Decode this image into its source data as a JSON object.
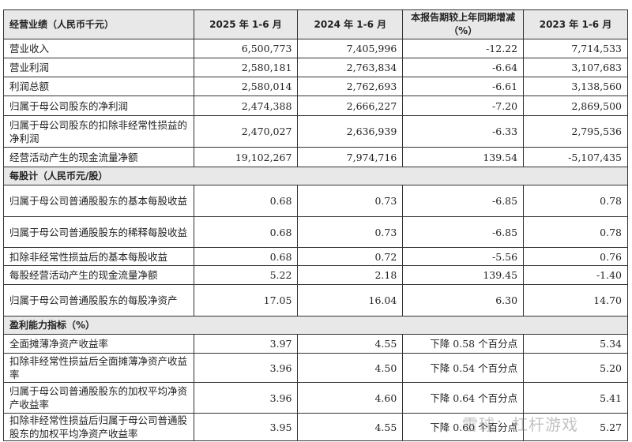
{
  "header": [
    "经营业绩（人民币千元）",
    "2025 年 1-6 月",
    "2024 年 1-6 月",
    "本报告期较上年同期增减（%）",
    "2023 年 1-6 月"
  ],
  "sections": [
    {
      "title": "",
      "rows": [
        [
          "营业收入",
          "6,500,773",
          "7,405,996",
          "-12.22",
          "7,714,533"
        ],
        [
          "营业利润",
          "2,580,181",
          "2,763,834",
          "-6.64",
          "3,107,683"
        ],
        [
          "利润总额",
          "2,580,014",
          "2,762,693",
          "-6.61",
          "3,138,560"
        ],
        [
          "归属于母公司股东的净利润",
          "2,474,388",
          "2,666,227",
          "-7.20",
          "2,869,500"
        ],
        [
          "归属于母公司股东的扣除非经常性损益的净利润",
          "2,470,027",
          "2,636,939",
          "-6.33",
          "2,795,536"
        ],
        [
          "经营活动产生的现金流量净额",
          "19,102,267",
          "7,974,716",
          "139.54",
          "-5,107,435"
        ]
      ]
    },
    {
      "title": "每股计（人民币元/股）",
      "rows": [
        [
          "归属于母公司普通股股东的基本每股收益",
          "0.68",
          "0.73",
          "-6.85",
          "0.78"
        ],
        [
          "归属于母公司普通股股东的稀释每股收益",
          "0.68",
          "0.73",
          "-6.85",
          "0.78"
        ],
        [
          "扣除非经常性损益后的基本每股收益",
          "0.68",
          "0.72",
          "-5.56",
          "0.76"
        ],
        [
          "每股经营活动产生的现金流量净额",
          "5.22",
          "2.18",
          "139.45",
          "-1.40"
        ],
        [
          "归属于母公司普通股股东的每股净资产",
          "17.05",
          "16.04",
          "6.30",
          "14.70"
        ]
      ]
    },
    {
      "title": "盈利能力指标（%）",
      "rows": [
        [
          "全面摊薄净资产收益率",
          "3.97",
          "4.55",
          "下降 0.58 个百分点",
          "5.34"
        ],
        [
          "扣除非经常性损益后全面摊薄净资产收益率",
          "3.96",
          "4.50",
          "下降 0.54 个百分点",
          "5.20"
        ],
        [
          "归属于母公司普通股股东的加权平均净资产收益率",
          "3.96",
          "4.60",
          "下降 0.64 个百分点",
          "5.41"
        ],
        [
          "扣除非经常性损益后归属于母公司普通股股东的加权平均净资产收益率",
          "3.95",
          "4.55",
          "下降 0.60 个百分点",
          "5.27"
        ]
      ]
    }
  ],
  "watermark": "雪球：杠杆游戏"
}
